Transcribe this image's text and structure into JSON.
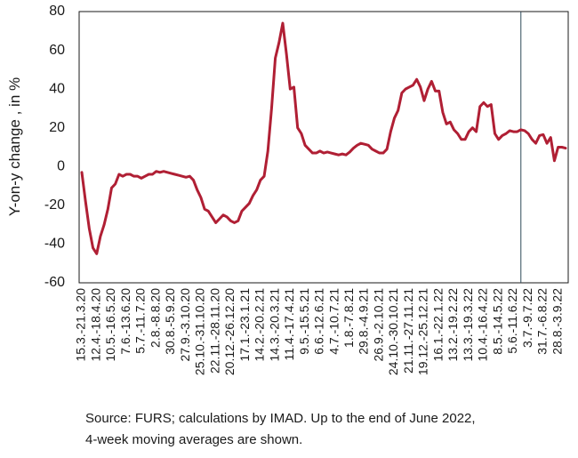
{
  "chart_data": {
    "type": "line",
    "ylabel": "Y-on-y change , in %",
    "ylim": [
      -60,
      80
    ],
    "yticks": [
      -60,
      -40,
      -20,
      0,
      20,
      40,
      60,
      80
    ],
    "grid": false,
    "legend": "none",
    "line_color": "#b01f34",
    "marker_color": "#2e4a5a",
    "x_tick_labels": [
      "15.3.-21.3.20",
      "12.4.-18.4.20",
      "10.5.-16.5.20",
      "7.6.-13.6.20",
      "5.7.-11.7.20",
      "2.8.-8.8.20",
      "30.8.-5.9.20",
      "27.9.-3.10.20",
      "25.10.-31.10.20",
      "22.11.-28.11.20",
      "20.12.-26.12.20",
      "17.1.-23.1.21",
      "14.2.-20.2.21",
      "14.3.-20.3.21",
      "11.4.-17.4.21",
      "9.5.-15.5.21",
      "6.6.-12.6.21",
      "4.7.-10.7.21",
      "1.8.-7.8.21",
      "29.8.-4.9.21",
      "26.9.-2.10.21",
      "24.10.-30.10.21",
      "21.11.-27.11.21",
      "19.12.-25.12.21",
      "16.1.-22.1.22",
      "13.2.-19.2.22",
      "13.3.-19.3.22",
      "10.4.-16.4.22",
      "8.5.-14.5.22",
      "5.6.-11.6.22",
      "3.7.-9.7.22",
      "31.7.-6.8.22",
      "28.8.-3.9.22"
    ],
    "vertical_marker_week": 118,
    "series": [
      {
        "values": [
          -3,
          -18,
          -32,
          -42,
          -45,
          -36,
          -30,
          -22,
          -11,
          -9,
          -4,
          -5,
          -4,
          -4,
          -5,
          -5,
          -6,
          -5,
          -4,
          -4,
          -2.5,
          -3,
          -2.5,
          -3,
          -3.5,
          -4,
          -4.5,
          -5,
          -5.5,
          -5,
          -7,
          -12,
          -16,
          -22,
          -23,
          -26,
          -29,
          -27,
          -25,
          -26,
          -28,
          -29,
          -28,
          -23,
          -21,
          -19,
          -15,
          -12,
          -7,
          -5,
          8,
          30,
          56,
          64,
          74,
          58,
          40,
          41,
          20,
          17,
          11,
          9,
          7,
          7,
          8,
          7,
          7.5,
          7,
          6.5,
          6,
          6.5,
          6,
          7.5,
          9.5,
          11,
          12,
          11.5,
          11,
          9,
          8,
          7,
          7,
          9,
          18,
          25,
          29,
          38,
          40,
          41,
          42,
          45,
          41,
          34,
          40,
          44,
          39,
          39,
          28,
          22,
          23,
          19,
          17,
          14,
          14,
          18,
          20,
          18,
          31,
          33,
          31,
          32,
          17,
          14,
          16,
          17,
          18.5,
          18,
          18,
          19,
          18.5,
          17,
          14,
          12,
          16,
          16.5,
          12,
          15,
          3,
          10,
          10,
          9.5
        ]
      }
    ]
  },
  "source_note": {
    "line1": "Source: FURS; calculations by IMAD. Up to the end of June 2022,",
    "line2": "4-week moving averages are shown."
  }
}
